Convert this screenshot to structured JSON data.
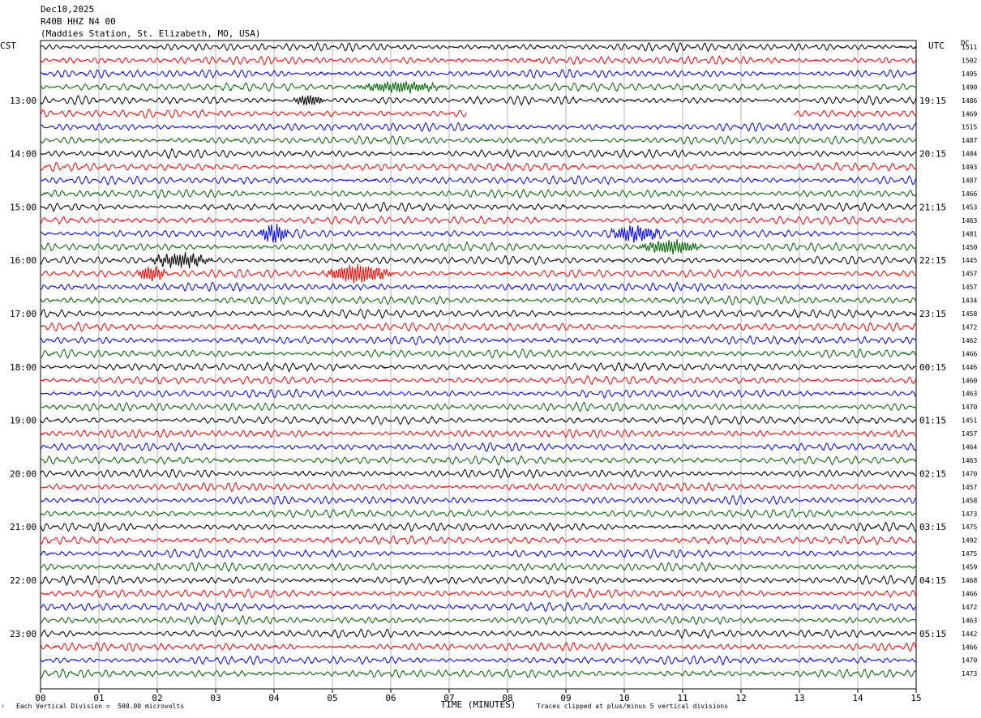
{
  "header": {
    "date": "Dec10,2025",
    "station_code": "R40B HHZ N4 00",
    "station_name": "(Maddies Station, St. Elizabeth, MO, USA)"
  },
  "left_axis_label": "CST",
  "right_axis_label": "UTC",
  "dc_label": "DC",
  "footer": {
    "scale_note": "Each Vertical Division =  500.00 microvolts",
    "clip_note": "Traces clipped at plus/minus 5 vertical divisions",
    "corner_mark": "¹"
  },
  "trace_colors": [
    "#000000",
    "#ff0000",
    "#0000ff",
    "#006400"
  ],
  "chart_data": {
    "type": "line",
    "title": "",
    "xlabel": "TIME (MINUTES)",
    "xlim": [
      0,
      15
    ],
    "x_ticks": [
      "00",
      "01",
      "02",
      "03",
      "04",
      "05",
      "06",
      "07",
      "08",
      "09",
      "10",
      "11",
      "12",
      "13",
      "14",
      "15"
    ],
    "left_hour_labels": [
      "13:00",
      "14:00",
      "15:00",
      "16:00",
      "17:00",
      "18:00",
      "19:00",
      "20:00",
      "21:00",
      "22:00",
      "23:00"
    ],
    "right_hour_labels": [
      "19:15",
      "20:15",
      "21:15",
      "22:15",
      "23:15",
      "00:15",
      "01:15",
      "02:15",
      "03:15",
      "04:15",
      "05:15"
    ],
    "dc_offsets": [
      1511,
      1502,
      1495,
      1490,
      1486,
      1469,
      1515,
      1487,
      1484,
      1493,
      1487,
      1466,
      1453,
      1463,
      1481,
      1450,
      1445,
      1457,
      1457,
      1434,
      1458,
      1472,
      1462,
      1466,
      1446,
      1460,
      1463,
      1470,
      1451,
      1457,
      1464,
      1463,
      1470,
      1457,
      1458,
      1473,
      1475,
      1492,
      1475,
      1459,
      1468,
      1466,
      1472,
      1463,
      1442,
      1466,
      1470,
      1473
    ],
    "events": [
      {
        "trace": 3,
        "start_min": 5.3,
        "end_min": 7.0,
        "amp": 1.3
      },
      {
        "trace": 4,
        "start_min": 4.3,
        "end_min": 4.9,
        "amp": 1.5
      },
      {
        "trace": 14,
        "start_min": 3.7,
        "end_min": 4.3,
        "amp": 2.2
      },
      {
        "trace": 14,
        "start_min": 9.7,
        "end_min": 10.7,
        "amp": 2.0
      },
      {
        "trace": 15,
        "start_min": 10.2,
        "end_min": 11.4,
        "amp": 1.8
      },
      {
        "trace": 16,
        "start_min": 1.8,
        "end_min": 3.0,
        "amp": 1.8
      },
      {
        "trace": 17,
        "start_min": 1.6,
        "end_min": 2.2,
        "amp": 2.0
      },
      {
        "trace": 17,
        "start_min": 4.8,
        "end_min": 6.1,
        "amp": 2.4
      }
    ],
    "gaps": [
      {
        "trace": 5,
        "start_min": 7.3,
        "end_min": 12.9
      }
    ]
  }
}
